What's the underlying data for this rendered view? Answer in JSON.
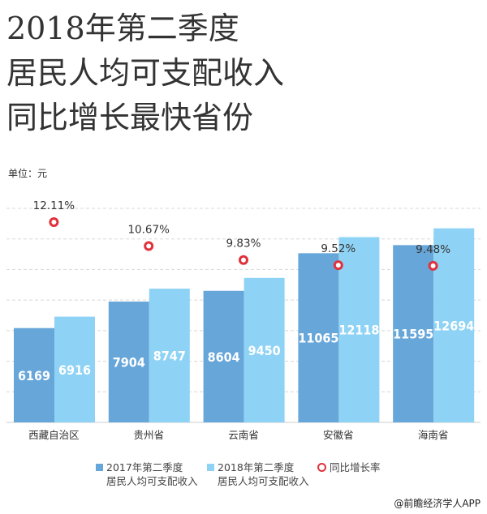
{
  "title_lines": [
    "2018年第二季度",
    "居民人均可支配收入",
    "同比增长最快省份"
  ],
  "unit_label": "单位：元",
  "credit": "@前瞻经济学人APP",
  "chart_data": {
    "type": "bar",
    "categories": [
      "西藏自治区",
      "贵州省",
      "云南省",
      "安徽省",
      "海南省"
    ],
    "series": [
      {
        "name": "2017年第二季度 居民人均可支配收入",
        "legend_lines": [
          "2017年第二季度",
          "居民人均可支配收入"
        ],
        "values": [
          6169,
          7904,
          8604,
          11065,
          11595
        ],
        "color": "#67a6d9"
      },
      {
        "name": "2018年第二季度 居民人均可支配收入",
        "legend_lines": [
          "2018年第二季度",
          "居民人均可支配收入"
        ],
        "values": [
          6916,
          8747,
          9450,
          12118,
          12694
        ],
        "color": "#8ed3f5"
      }
    ],
    "line_series": {
      "name": "同比增长率",
      "type": "line-markers",
      "values": [
        12.11,
        10.67,
        9.83,
        9.52,
        9.48
      ],
      "labels": [
        "12.11%",
        "10.67%",
        "9.83%",
        "9.52%",
        "9.48%"
      ],
      "color": "#e0323c"
    },
    "ylim": [
      0,
      14000
    ],
    "grid": true,
    "legend_position": "bottom"
  }
}
